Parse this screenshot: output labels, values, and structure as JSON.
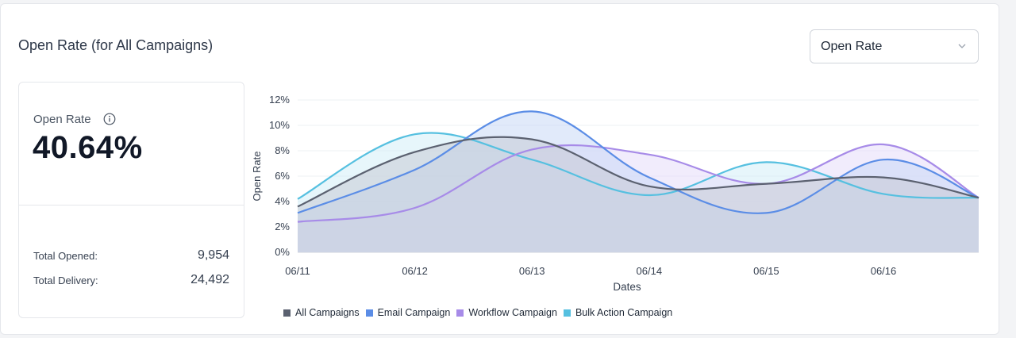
{
  "panel": {
    "title": "Open Rate (for All Campaigns)"
  },
  "dropdown": {
    "selected": "Open Rate"
  },
  "summary": {
    "label": "Open Rate",
    "value": "40.64%",
    "rows": [
      {
        "label": "Total Opened:",
        "value": "9,954"
      },
      {
        "label": "Total Delivery:",
        "value": "24,492"
      }
    ]
  },
  "chart_data": {
    "type": "area",
    "ylabel": "Open Rate",
    "xlabel": "Dates",
    "ylim": [
      0,
      12
    ],
    "yticks": [
      "0%",
      "2%",
      "4%",
      "6%",
      "8%",
      "10%",
      "12%"
    ],
    "categories": [
      "06/11",
      "06/12",
      "06/13",
      "06/14",
      "06/15",
      "06/16",
      ""
    ],
    "x_tick_labels": [
      "06/11",
      "06/12",
      "06/13",
      "06/14",
      "06/15",
      "06/16"
    ],
    "grid": true,
    "legend": "bottom-left",
    "series": [
      {
        "name": "All Campaigns",
        "color": "#5b6170",
        "fill": "#c7cbd6",
        "values": [
          3.6,
          7.9,
          8.9,
          5.2,
          5.4,
          5.9,
          4.3
        ]
      },
      {
        "name": "Email Campaign",
        "color": "#5b8de6",
        "fill": "#c9d9f5",
        "values": [
          3.1,
          6.5,
          11.1,
          5.9,
          3.1,
          7.3,
          4.3
        ]
      },
      {
        "name": "Workflow Campaign",
        "color": "#a78be8",
        "fill": "#e6ddfa",
        "values": [
          2.4,
          3.5,
          8.1,
          7.7,
          5.4,
          8.5,
          4.3
        ]
      },
      {
        "name": "Bulk Action Campaign",
        "color": "#56c0e0",
        "fill": "#d3eff8",
        "values": [
          4.2,
          9.3,
          7.3,
          4.5,
          7.1,
          4.6,
          4.3
        ]
      }
    ]
  }
}
